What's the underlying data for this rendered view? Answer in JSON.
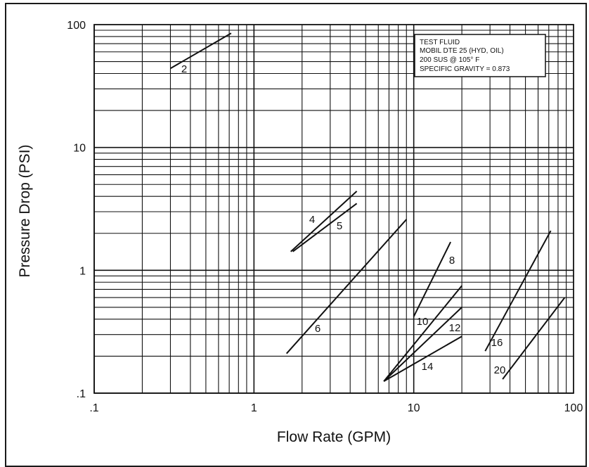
{
  "chart_data": {
    "type": "line",
    "xlabel": "Flow Rate (GPM)",
    "ylabel": "Pressure Drop (PSI)",
    "x_scale": "log",
    "y_scale": "log",
    "xlim": [
      0.1,
      100
    ],
    "ylim": [
      0.1,
      100
    ],
    "grid": true,
    "x_ticks": [
      {
        "value": 0.1,
        "label": ".1"
      },
      {
        "value": 1,
        "label": "1"
      },
      {
        "value": 10,
        "label": "10"
      },
      {
        "value": 100,
        "label": "100"
      }
    ],
    "y_ticks": [
      {
        "value": 0.1,
        "label": ".1"
      },
      {
        "value": 1,
        "label": "1"
      },
      {
        "value": 10,
        "label": "10"
      },
      {
        "value": 100,
        "label": "100"
      }
    ],
    "series": [
      {
        "name": "2",
        "x": [
          0.3,
          0.72
        ],
        "y": [
          44,
          85
        ]
      },
      {
        "name": "4",
        "x": [
          1.7,
          4.4
        ],
        "y": [
          1.42,
          4.4
        ]
      },
      {
        "name": "5",
        "x": [
          1.75,
          4.4
        ],
        "y": [
          1.42,
          3.5
        ]
      },
      {
        "name": "6",
        "x": [
          1.6,
          9.0
        ],
        "y": [
          0.21,
          2.6
        ]
      },
      {
        "name": "8",
        "x": [
          10.0,
          17.0
        ],
        "y": [
          0.42,
          1.7
        ]
      },
      {
        "name": "10",
        "x": [
          6.5,
          20.0
        ],
        "y": [
          0.125,
          0.75
        ]
      },
      {
        "name": "12",
        "x": [
          6.5,
          20.0
        ],
        "y": [
          0.125,
          0.5
        ]
      },
      {
        "name": "14",
        "x": [
          6.5,
          20.0
        ],
        "y": [
          0.125,
          0.29
        ]
      },
      {
        "name": "16",
        "x": [
          28.0,
          72.0
        ],
        "y": [
          0.22,
          2.1
        ]
      },
      {
        "name": "20",
        "x": [
          36.0,
          88.0
        ],
        "y": [
          0.13,
          0.6
        ]
      }
    ],
    "annotation": {
      "lines": [
        "TEST FLUID",
        "MOBIL DTE 25 (HYD, OIL)",
        "200 SUS @ 105° F",
        "SPECIFIC GRAVITY = 0.873"
      ]
    },
    "colors": {
      "line": "#111111",
      "grid": "#111111",
      "background": "#ffffff"
    }
  }
}
